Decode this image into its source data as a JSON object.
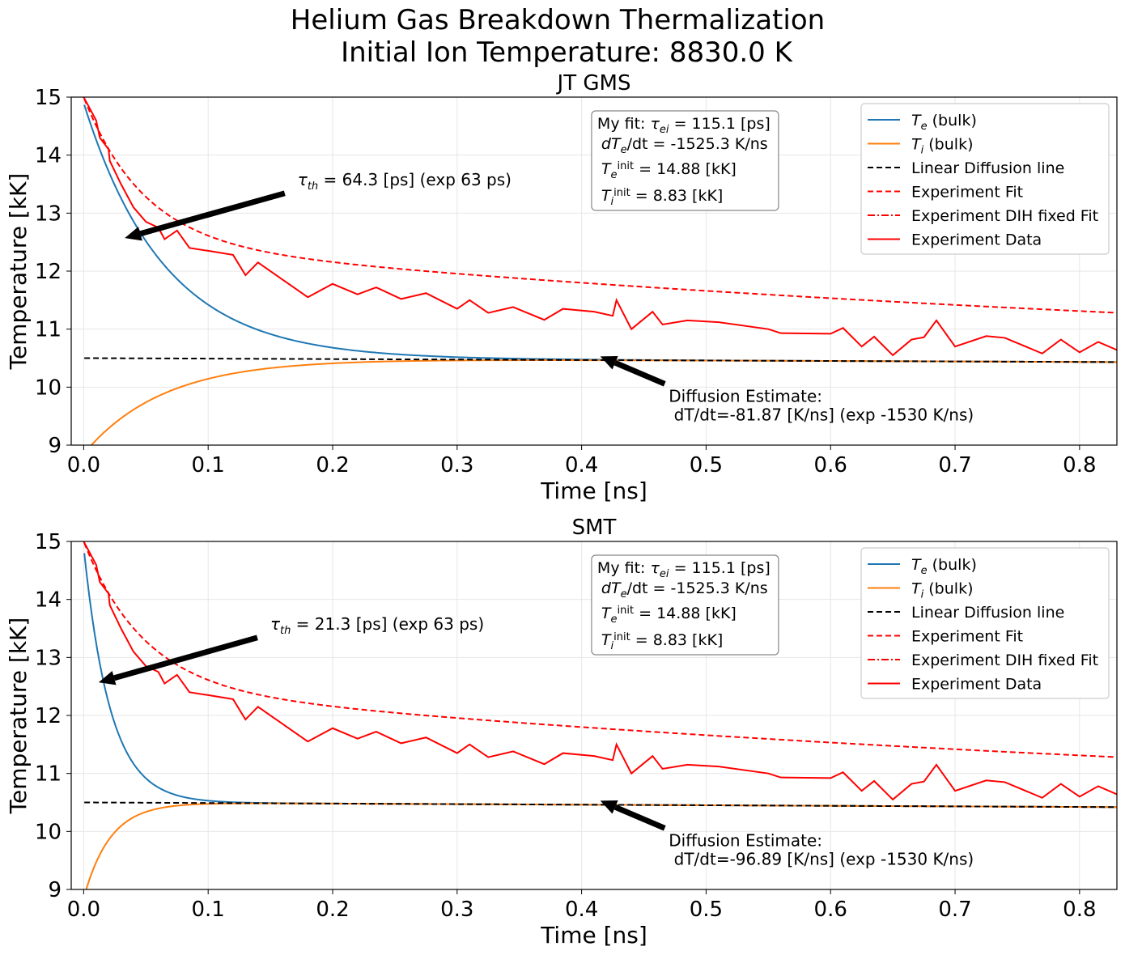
{
  "figure": {
    "title_line1": "Helium Gas Breakdown Thermalization",
    "title_line2": "Initial Ion Temperature: 8830.0 K"
  },
  "colors": {
    "Te": "#1f77b4",
    "Ti": "#ff7f0e",
    "diffusion": "#000000",
    "experiment": "#ff0000",
    "grid": "#e6e6e6"
  },
  "legend": [
    {
      "key": "Te",
      "base": "T",
      "sub": "e",
      "suffix": " (bulk)",
      "style": "solid",
      "color": "#1f77b4"
    },
    {
      "key": "Ti",
      "base": "T",
      "sub": "i",
      "suffix": " (bulk)",
      "style": "solid",
      "color": "#ff7f0e"
    },
    {
      "key": "diff",
      "text": "Linear Diffusion line",
      "style": "dashed",
      "color": "#000000"
    },
    {
      "key": "fit",
      "text": "Experiment Fit",
      "style": "dashed",
      "color": "#ff0000"
    },
    {
      "key": "dih",
      "text": "Experiment DIH fixed Fit",
      "style": "dashdot",
      "color": "#ff0000"
    },
    {
      "key": "data",
      "text": "Experiment Data",
      "style": "solid",
      "color": "#ff0000"
    }
  ],
  "fitbox": {
    "line1_prefix": "My fit: ",
    "line1_sym": "τ",
    "line1_sub": "ei",
    "line1_suffix": " = 115.1 [ps]",
    "line2_prefix": "dT",
    "line2_sub": "e",
    "line2_suffix": "/dt = -1525.3 K/ns",
    "line3_sym": "T",
    "line3_sub": "e",
    "line3_sup": "init",
    "line3_suffix": " = 14.88 [kK]",
    "line4_sym": "T",
    "line4_sub": "i",
    "line4_sup": "init",
    "line4_suffix": " = 8.83 [kK]"
  },
  "chart_data": [
    {
      "type": "line",
      "title": "JT GMS",
      "xlabel": "Time [ns]",
      "ylabel": "Temperature [kK]",
      "xlim": [
        -0.01,
        0.83
      ],
      "ylim": [
        9,
        15
      ],
      "xticks": [
        "0.0",
        "0.1",
        "0.2",
        "0.3",
        "0.4",
        "0.5",
        "0.6",
        "0.7",
        "0.8"
      ],
      "yticks": [
        "9",
        "10",
        "11",
        "12",
        "13",
        "14",
        "15"
      ],
      "grid": true,
      "legend_position": "top-right",
      "tau_th_ps": 64.3,
      "Te_init": 14.88,
      "Ti_init": 8.83,
      "T_eq": 10.48,
      "diffusion_line": {
        "t0": 0.0,
        "T0": 10.5,
        "slope_K_per_ns": -81.87
      },
      "tau_annotation": {
        "sym": "τ",
        "sub": "th",
        "text": " = 64.3 [ps] (exp 63 ps)",
        "arrow_to": [
          0.033,
          12.57
        ],
        "text_at": [
          0.168,
          13.37
        ]
      },
      "diffusion_annotation": {
        "line1": "Diffusion Estimate:",
        "line2": " dT/dt=-81.87 [K/ns] (exp -1530 K/ns)",
        "arrow_to": [
          0.415,
          10.53
        ],
        "text_at": [
          0.47,
          10.0
        ]
      },
      "series": [
        {
          "name": "Te (bulk)",
          "key": "Te",
          "model": "exp"
        },
        {
          "name": "Ti (bulk)",
          "key": "Ti",
          "model": "exp"
        },
        {
          "name": "Linear Diffusion line",
          "key": "diff",
          "model": "linear"
        },
        {
          "name": "Experiment Fit",
          "key": "fit",
          "model": "fit"
        },
        {
          "name": "Experiment Data",
          "key": "data",
          "x": [
            0.0,
            0.005,
            0.01,
            0.013,
            0.02,
            0.021,
            0.03,
            0.04,
            0.05,
            0.06,
            0.065,
            0.075,
            0.085,
            0.1,
            0.12,
            0.13,
            0.14,
            0.18,
            0.2,
            0.22,
            0.235,
            0.255,
            0.275,
            0.3,
            0.31,
            0.325,
            0.345,
            0.37,
            0.385,
            0.41,
            0.425,
            0.428,
            0.44,
            0.457,
            0.465,
            0.485,
            0.51,
            0.55,
            0.56,
            0.6,
            0.61,
            0.625,
            0.635,
            0.65,
            0.665,
            0.675,
            0.685,
            0.7,
            0.725,
            0.74,
            0.77,
            0.785,
            0.8,
            0.815,
            0.83
          ],
          "y": [
            15.0,
            14.8,
            14.6,
            14.3,
            14.1,
            13.9,
            13.5,
            13.1,
            12.85,
            12.75,
            12.55,
            12.7,
            12.4,
            12.35,
            12.28,
            11.93,
            12.15,
            11.55,
            11.78,
            11.6,
            11.72,
            11.52,
            11.62,
            11.35,
            11.5,
            11.28,
            11.38,
            11.16,
            11.35,
            11.3,
            11.23,
            11.5,
            11.0,
            11.3,
            11.08,
            11.15,
            11.12,
            11.0,
            10.93,
            10.92,
            11.02,
            10.7,
            10.87,
            10.55,
            10.82,
            10.86,
            11.15,
            10.7,
            10.88,
            10.85,
            10.58,
            10.82,
            10.6,
            10.78,
            10.64
          ]
        }
      ]
    },
    {
      "type": "line",
      "title": "SMT",
      "xlabel": "Time [ns]",
      "ylabel": "Temperature [kK]",
      "xlim": [
        -0.01,
        0.83
      ],
      "ylim": [
        9,
        15
      ],
      "xticks": [
        "0.0",
        "0.1",
        "0.2",
        "0.3",
        "0.4",
        "0.5",
        "0.6",
        "0.7",
        "0.8"
      ],
      "yticks": [
        "9",
        "10",
        "11",
        "12",
        "13",
        "14",
        "15"
      ],
      "grid": true,
      "legend_position": "top-right",
      "tau_th_ps": 21.3,
      "Te_init": 14.88,
      "Ti_init": 8.83,
      "T_eq": 10.48,
      "diffusion_line": {
        "t0": 0.0,
        "T0": 10.5,
        "slope_K_per_ns": -96.89
      },
      "tau_annotation": {
        "sym": "τ",
        "sub": "th",
        "text": " = 21.3 [ps] (exp 63 ps)",
        "arrow_to": [
          0.012,
          12.57
        ],
        "text_at": [
          0.146,
          13.37
        ]
      },
      "diffusion_annotation": {
        "line1": "Diffusion Estimate:",
        "line2": " dT/dt=-96.89 [K/ns] (exp -1530 K/ns)",
        "arrow_to": [
          0.415,
          10.53
        ],
        "text_at": [
          0.47,
          10.0
        ]
      },
      "series": [
        {
          "name": "Te (bulk)",
          "key": "Te",
          "model": "exp"
        },
        {
          "name": "Ti (bulk)",
          "key": "Ti",
          "model": "exp"
        },
        {
          "name": "Linear Diffusion line",
          "key": "diff",
          "model": "linear"
        },
        {
          "name": "Experiment Fit",
          "key": "fit",
          "model": "fit"
        },
        {
          "name": "Experiment Data",
          "key": "data",
          "x": [
            0.0,
            0.005,
            0.01,
            0.013,
            0.02,
            0.021,
            0.03,
            0.04,
            0.05,
            0.06,
            0.065,
            0.075,
            0.085,
            0.1,
            0.12,
            0.13,
            0.14,
            0.18,
            0.2,
            0.22,
            0.235,
            0.255,
            0.275,
            0.3,
            0.31,
            0.325,
            0.345,
            0.37,
            0.385,
            0.41,
            0.425,
            0.428,
            0.44,
            0.457,
            0.465,
            0.485,
            0.51,
            0.55,
            0.56,
            0.6,
            0.61,
            0.625,
            0.635,
            0.65,
            0.665,
            0.675,
            0.685,
            0.7,
            0.725,
            0.74,
            0.77,
            0.785,
            0.8,
            0.815,
            0.83
          ],
          "y": [
            15.0,
            14.8,
            14.6,
            14.3,
            14.1,
            13.9,
            13.5,
            13.1,
            12.85,
            12.75,
            12.55,
            12.7,
            12.4,
            12.35,
            12.28,
            11.93,
            12.15,
            11.55,
            11.78,
            11.6,
            11.72,
            11.52,
            11.62,
            11.35,
            11.5,
            11.28,
            11.38,
            11.16,
            11.35,
            11.3,
            11.23,
            11.5,
            11.0,
            11.3,
            11.08,
            11.15,
            11.12,
            11.0,
            10.93,
            10.92,
            11.02,
            10.7,
            10.87,
            10.55,
            10.82,
            10.86,
            11.15,
            10.7,
            10.88,
            10.85,
            10.58,
            10.82,
            10.6,
            10.78,
            10.64
          ]
        }
      ]
    }
  ],
  "fit_model": {
    "T_inf": 10.2,
    "A1": 2.5,
    "tau1_ns": 0.048,
    "A2": 2.3,
    "tau2_ns": 1.1
  }
}
